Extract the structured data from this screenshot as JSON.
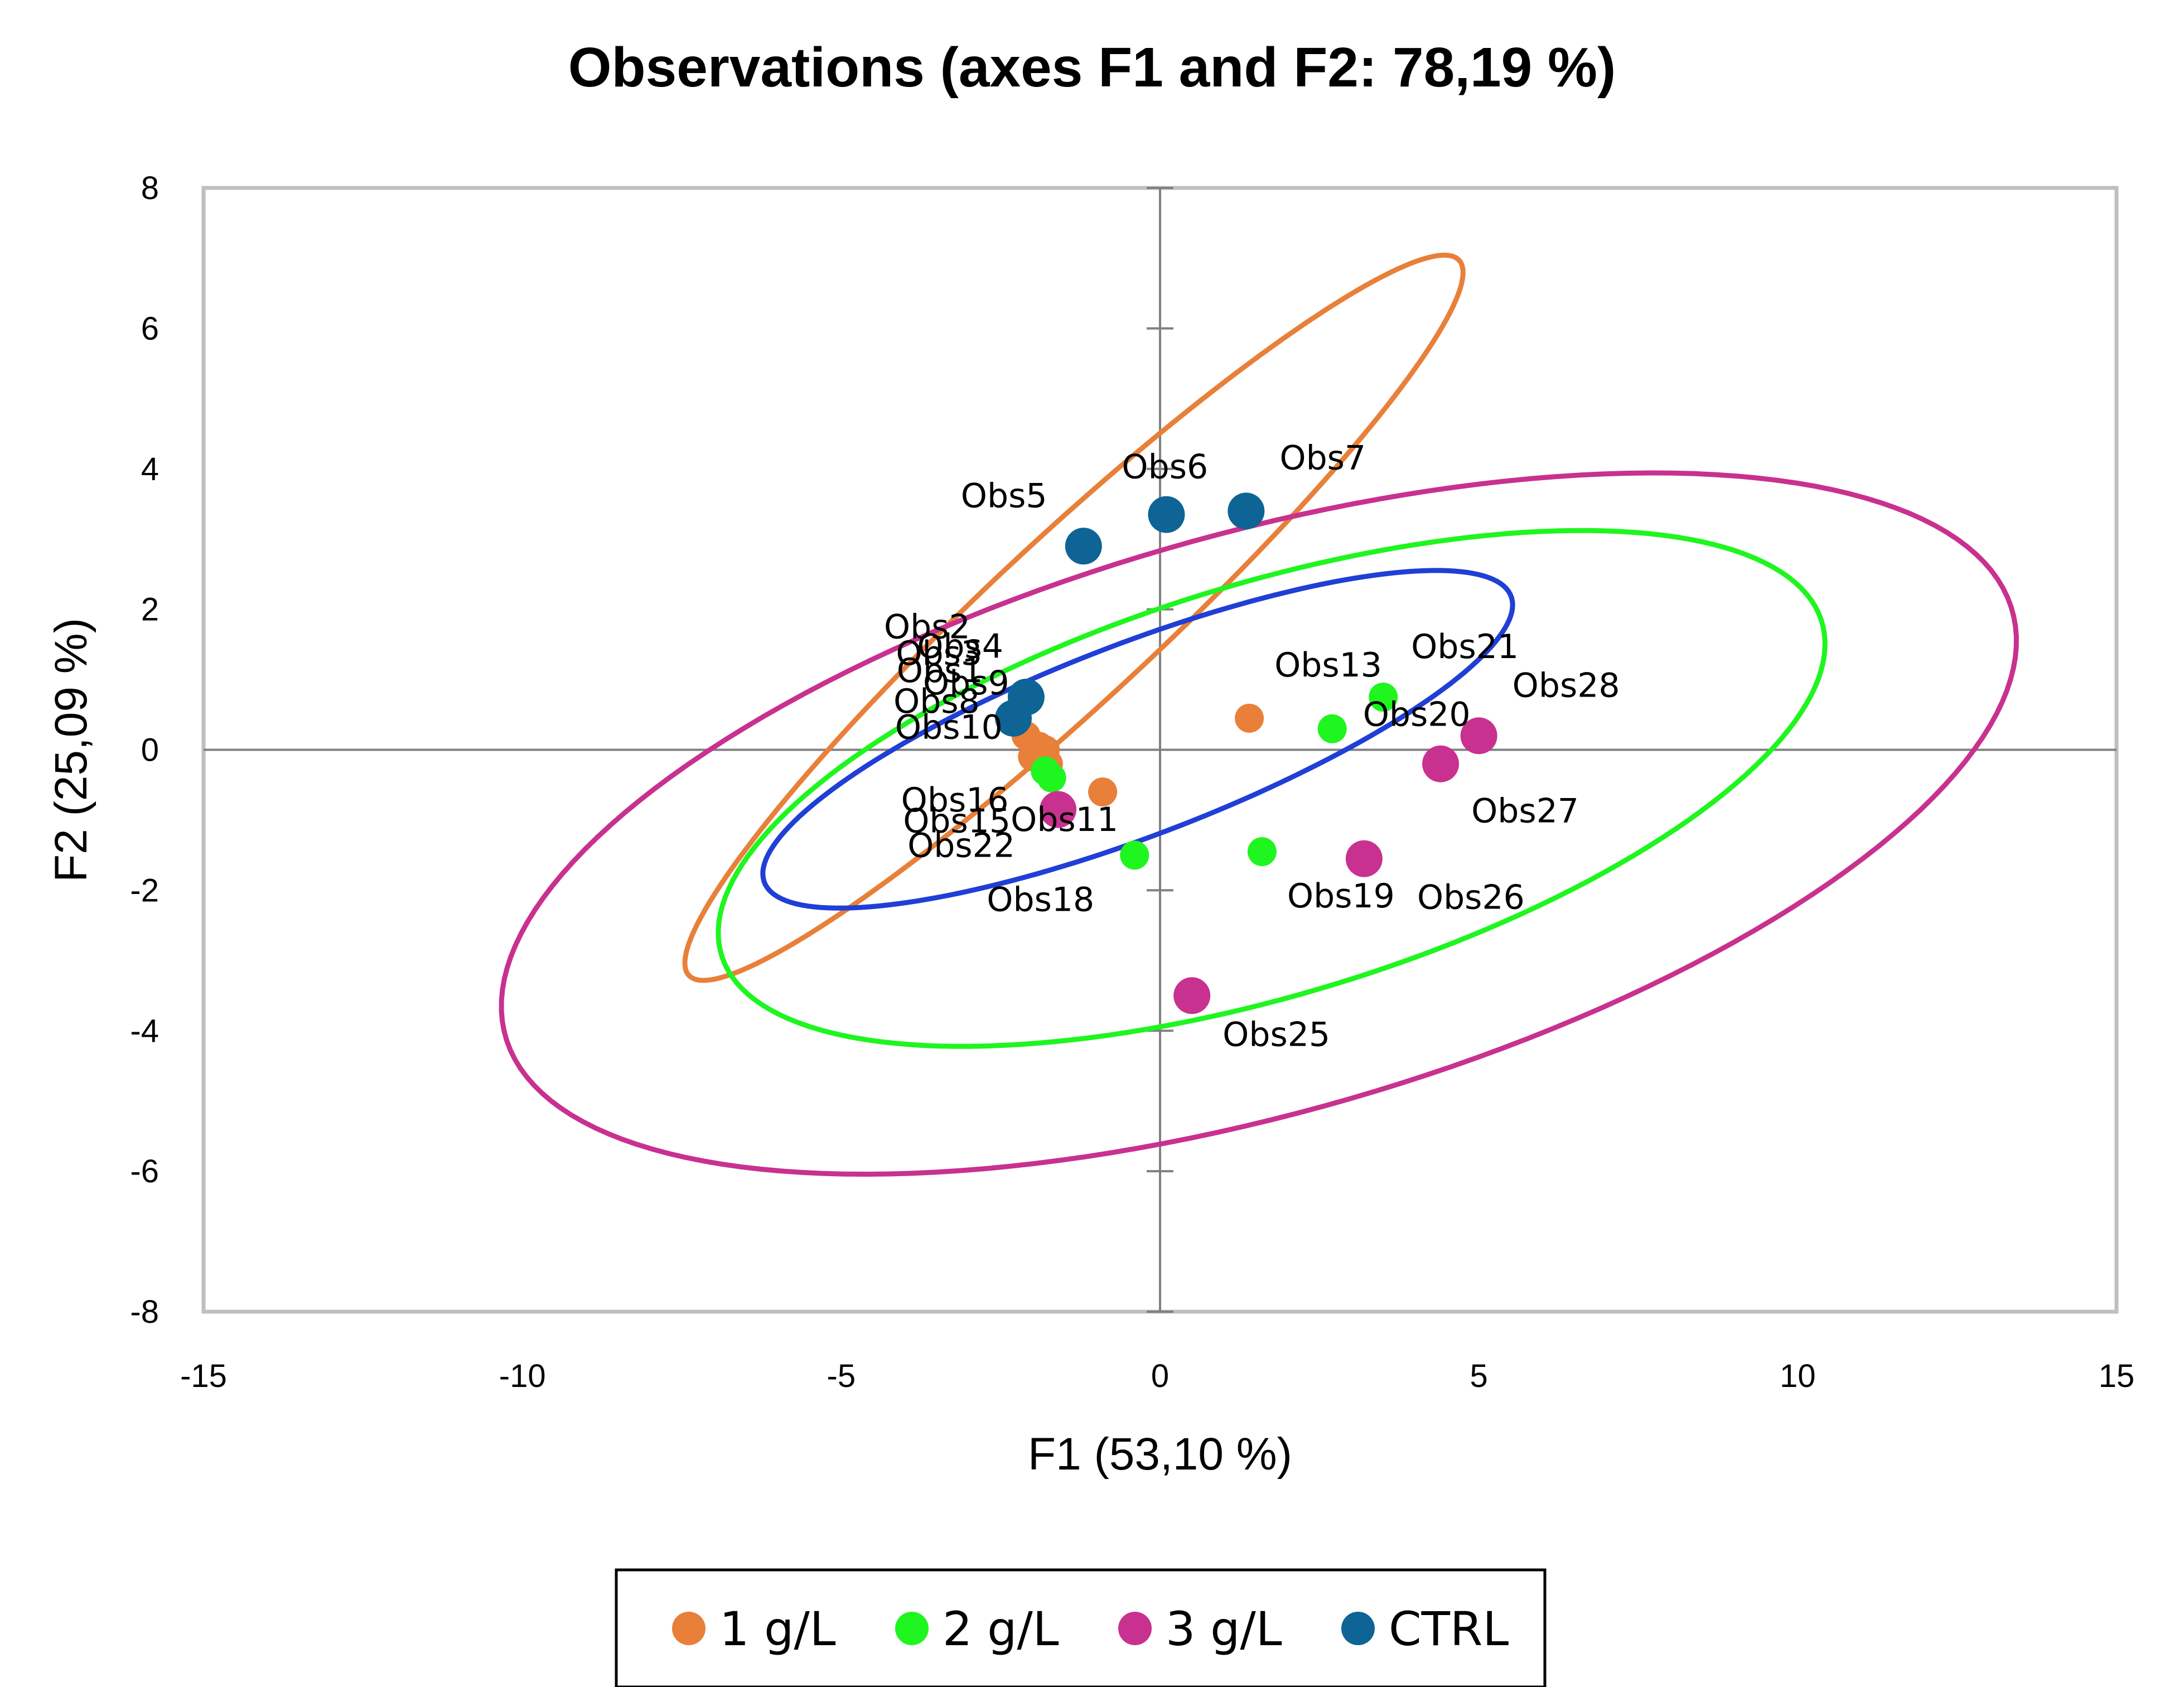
{
  "chart_data": {
    "type": "scatter",
    "title": "Observations (axes F1 and F2: 78,19 %)",
    "xlabel": "F1 (53,10 %)",
    "ylabel": "F2 (25,09 %)",
    "xlim": [
      -15,
      15
    ],
    "ylim": [
      -8,
      8
    ],
    "x_ticks": [
      -15,
      -10,
      -5,
      0,
      5,
      10,
      15
    ],
    "y_ticks": [
      -8,
      -6,
      -4,
      -2,
      0,
      2,
      4,
      6,
      8
    ],
    "legend_position": "bottom",
    "colors": {
      "1 g/L": "#e8803a",
      "2 g/L": "#1ff51f",
      "3 g/L": "#c8318f",
      "CTRL": "#0e6494",
      "blue_ellipse": "#1f3fd6",
      "axis": "#808080",
      "frame": "#bfbfbf"
    },
    "series": [
      {
        "name": "1 g/L",
        "points": [
          {
            "label": "Obs1",
            "x": -1.9,
            "y": 0.05
          },
          {
            "label": "Obs2",
            "x": -2.1,
            "y": 0.2
          },
          {
            "label": "Obs3",
            "x": -2.0,
            "y": -0.1
          },
          {
            "label": "Obs4",
            "x": -1.8,
            "y": 0.0
          },
          {
            "label": "Obs10",
            "x": -1.75,
            "y": -0.2
          },
          {
            "label": "Obs11",
            "x": -0.9,
            "y": -0.6
          },
          {
            "label": "Obs13",
            "x": 1.4,
            "y": 0.45
          }
        ]
      },
      {
        "name": "2 g/L",
        "points": [
          {
            "label": "Obs15",
            "x": -1.8,
            "y": -0.3
          },
          {
            "label": "Obs16",
            "x": -1.7,
            "y": -0.4
          },
          {
            "label": "Obs18",
            "x": -0.4,
            "y": -1.5
          },
          {
            "label": "Obs19",
            "x": 1.6,
            "y": -1.45
          },
          {
            "label": "Obs20",
            "x": 2.7,
            "y": 0.3
          },
          {
            "label": "Obs21",
            "x": 3.5,
            "y": 0.75
          }
        ]
      },
      {
        "name": "3 g/L",
        "points": [
          {
            "label": "Obs22",
            "x": -1.6,
            "y": -0.85
          },
          {
            "label": "Obs25",
            "x": 0.5,
            "y": -3.5
          },
          {
            "label": "Obs26",
            "x": 3.2,
            "y": -1.55
          },
          {
            "label": "Obs27",
            "x": 4.4,
            "y": -0.2
          },
          {
            "label": "Obs28",
            "x": 5.0,
            "y": 0.2
          }
        ]
      },
      {
        "name": "CTRL",
        "points": [
          {
            "label": "Obs5",
            "x": -1.2,
            "y": 2.9
          },
          {
            "label": "Obs6",
            "x": 0.1,
            "y": 3.35
          },
          {
            "label": "Obs7",
            "x": 1.35,
            "y": 3.4
          },
          {
            "label": "Obs8",
            "x": -2.3,
            "y": 0.45
          },
          {
            "label": "Obs9",
            "x": -2.1,
            "y": 0.75
          }
        ]
      }
    ],
    "ellipses": [
      {
        "name": "1 g/L",
        "cx": -1.35,
        "cy": 1.88,
        "rx": 7.9,
        "ry": 1.22,
        "angle_deg": 40
      },
      {
        "name": "2 g/L",
        "cx": 1.75,
        "cy": -0.55,
        "rx": 8.95,
        "ry": 2.95,
        "angle_deg": 15
      },
      {
        "name": "3 g/L",
        "cx": 1.55,
        "cy": -1.05,
        "rx": 12.2,
        "ry": 4.15,
        "angle_deg": 14
      },
      {
        "name": "CTRL",
        "cx": -0.35,
        "cy": 0.15,
        "rx": 6.2,
        "ry": 1.38,
        "angle_deg": 19
      }
    ],
    "legend": [
      {
        "label": "1 g/L"
      },
      {
        "label": "2 g/L"
      },
      {
        "label": "3 g/L"
      },
      {
        "label": "CTRL"
      }
    ]
  }
}
